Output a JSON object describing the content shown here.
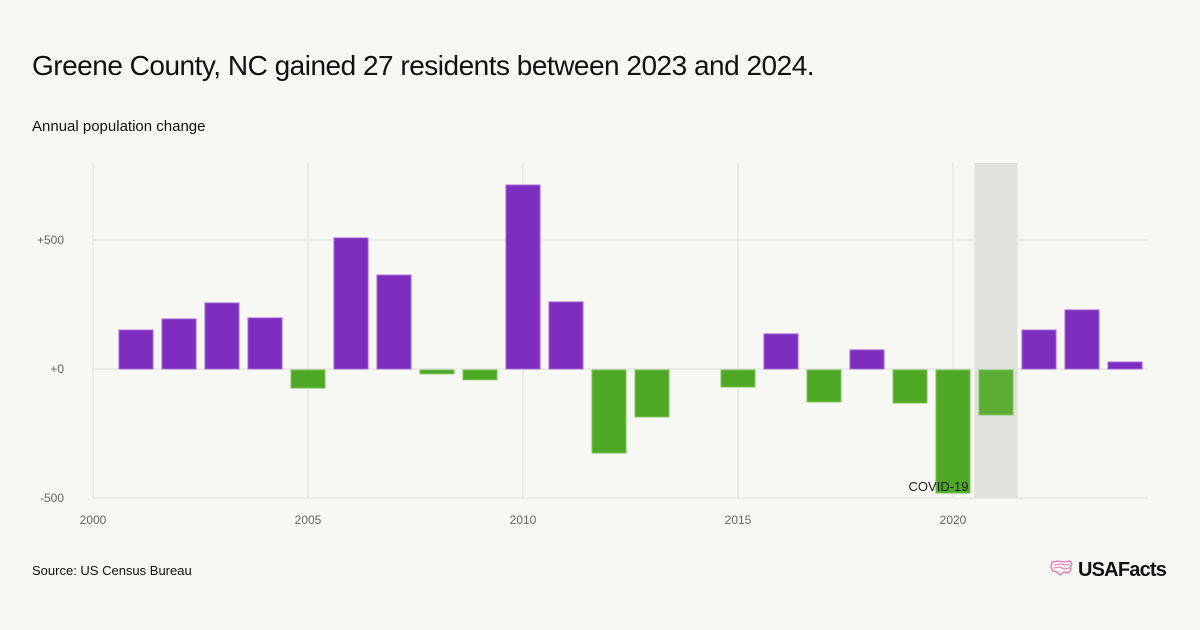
{
  "header": {
    "title": "Greene County, NC gained 27 residents between 2023 and 2024.",
    "subtitle": "Annual population change"
  },
  "footer": {
    "source": "Source: US Census Bureau",
    "logo_text": "USAFacts",
    "logo_icon": "us-map-icon"
  },
  "colors": {
    "positive": "#7e2ebf",
    "negative": "#4fa825",
    "highlight_band": "#e1e1dc",
    "grid": "#dddddd",
    "logo_accent": "#e872b5"
  },
  "chart_data": {
    "type": "bar",
    "title": "Greene County, NC gained 27 residents between 2023 and 2024.",
    "ylabel": "Annual population change",
    "xlabel": "",
    "x": [
      2001,
      2002,
      2003,
      2004,
      2005,
      2006,
      2007,
      2008,
      2009,
      2010,
      2011,
      2012,
      2013,
      2014,
      2015,
      2016,
      2017,
      2018,
      2019,
      2020,
      2021,
      2022,
      2023,
      2024
    ],
    "values": [
      151,
      194,
      256,
      198,
      -70,
      508,
      364,
      -15,
      -38,
      713,
      260,
      -322,
      -182,
      null,
      -66,
      136,
      -124,
      74,
      -128,
      -477,
      -174,
      151,
      229,
      27
    ],
    "xlim": [
      2000,
      2024.5
    ],
    "ylim": [
      -500,
      800
    ],
    "xticks": [
      2000,
      2005,
      2010,
      2015,
      2020
    ],
    "xtick_labels": [
      "2000",
      "2005",
      "2010",
      "2015",
      "2020"
    ],
    "yticks": [
      -500,
      0,
      500
    ],
    "ytick_labels": [
      "-500",
      "+0",
      "+500"
    ],
    "grid": true,
    "annotations": [
      {
        "text": "COVID-19",
        "band": [
          2020.5,
          2021.5
        ]
      }
    ],
    "legend": "none"
  }
}
